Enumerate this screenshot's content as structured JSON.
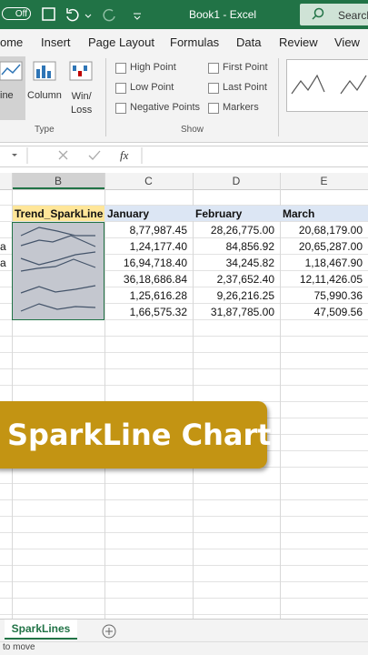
{
  "titlebar": {
    "toggle": "Off",
    "title": "Book1 - Excel",
    "search": "Search"
  },
  "ribbon_tabs": [
    "ome",
    "Insert",
    "Page Layout",
    "Formulas",
    "Data",
    "Review",
    "View"
  ],
  "type_group": {
    "buttons": [
      "ine",
      "Column",
      "Win/\nLoss"
    ],
    "label": "Type"
  },
  "show_group": {
    "options": [
      "High Point",
      "Low Point",
      "Negative Points",
      "First Point",
      "Last Point",
      "Markers"
    ],
    "label": "Show"
  },
  "formula_bar": {
    "fx": "fx"
  },
  "columns": [
    "B",
    "C",
    "D",
    "E"
  ],
  "table": {
    "header": [
      "Trend_SparkLine",
      "January",
      "February",
      "March"
    ],
    "row_stubs": [
      null,
      "a",
      "a",
      null,
      null,
      null
    ],
    "rows": [
      [
        "8,77,987.45",
        "28,26,775.00",
        "20,68,179.00"
      ],
      [
        "1,24,177.40",
        "84,856.92",
        "20,65,287.00"
      ],
      [
        "16,94,718.40",
        "34,245.82",
        "1,18,467.90"
      ],
      [
        "36,18,686.84",
        "2,37,652.40",
        "12,11,426.05"
      ],
      [
        "1,25,616.28",
        "9,26,216.25",
        "75,990.36"
      ],
      [
        "1,66,575.32",
        "31,87,785.00",
        "47,509.56"
      ]
    ]
  },
  "banner": "SparkLine Chart",
  "sheet_tab": "SparkLines",
  "status": "to move"
}
